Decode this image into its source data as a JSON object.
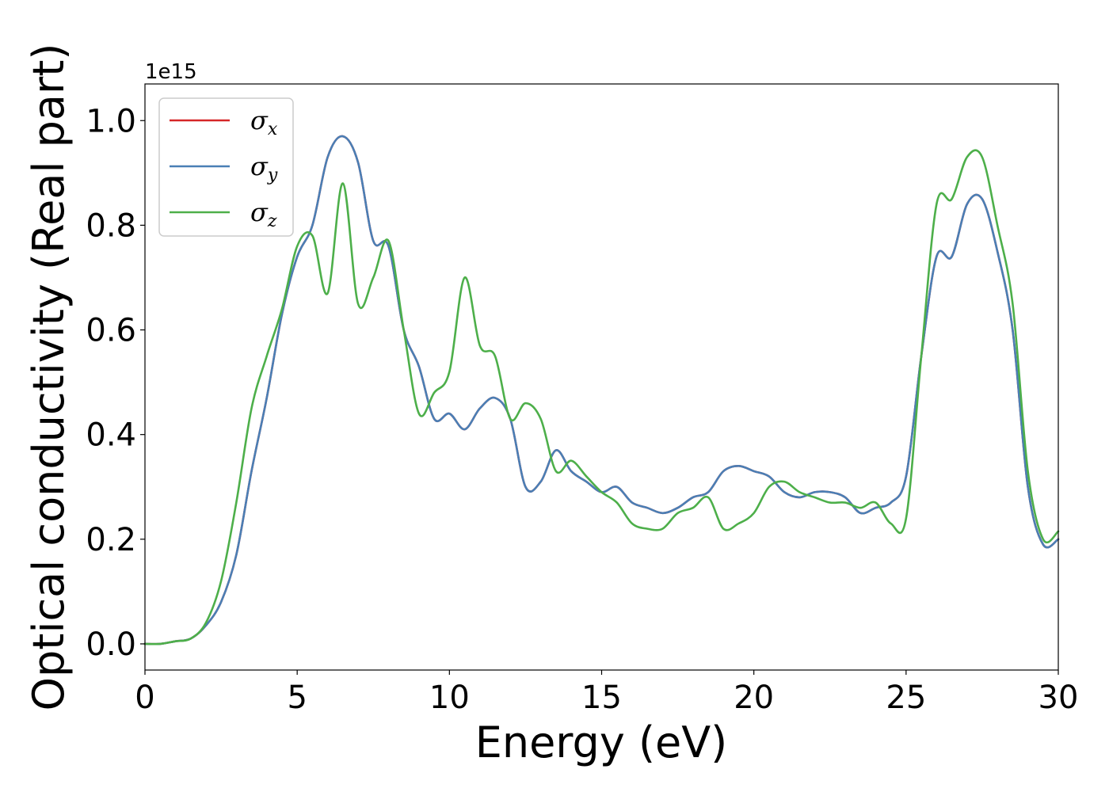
{
  "chart_data": {
    "type": "line",
    "title": "",
    "xlabel": "Energy (eV)",
    "ylabel": "Optical conductivity (Real part)",
    "y_offset_label": "1e15",
    "xlim": [
      0,
      30
    ],
    "ylim": [
      -0.05,
      1.07
    ],
    "xticks": [
      0,
      5,
      10,
      15,
      20,
      25,
      30
    ],
    "xtick_labels": [
      "0",
      "5",
      "10",
      "15",
      "20",
      "25",
      "30"
    ],
    "yticks": [
      0.0,
      0.2,
      0.4,
      0.6,
      0.8,
      1.0
    ],
    "ytick_labels": [
      "0.0",
      "0.2",
      "0.4",
      "0.6",
      "0.8",
      "1.0"
    ],
    "grid": false,
    "legend_position": "top-left",
    "x": [
      0,
      0.5,
      1.0,
      1.5,
      2.0,
      2.5,
      3.0,
      3.5,
      4.0,
      4.5,
      5.0,
      5.5,
      6.0,
      6.5,
      7.0,
      7.5,
      8.0,
      8.5,
      9.0,
      9.5,
      10.0,
      10.5,
      11.0,
      11.5,
      12.0,
      12.5,
      13.0,
      13.5,
      14.0,
      14.5,
      15.0,
      15.5,
      16.0,
      16.5,
      17.0,
      17.5,
      18.0,
      18.5,
      19.0,
      19.5,
      20.0,
      20.5,
      21.0,
      21.5,
      22.0,
      22.5,
      23.0,
      23.5,
      24.0,
      24.5,
      25.0,
      25.5,
      26.0,
      26.5,
      27.0,
      27.5,
      28.0,
      28.5,
      29.0,
      29.5,
      30.0
    ],
    "series": [
      {
        "name": "σx",
        "label_base": "σ",
        "label_sub": "x",
        "color": "#d62728",
        "values": [
          0.0,
          0.0,
          0.005,
          0.01,
          0.035,
          0.08,
          0.17,
          0.33,
          0.47,
          0.63,
          0.74,
          0.8,
          0.93,
          0.97,
          0.92,
          0.77,
          0.76,
          0.6,
          0.53,
          0.43,
          0.44,
          0.41,
          0.45,
          0.47,
          0.43,
          0.3,
          0.31,
          0.37,
          0.33,
          0.31,
          0.29,
          0.3,
          0.27,
          0.26,
          0.25,
          0.26,
          0.28,
          0.29,
          0.33,
          0.34,
          0.33,
          0.32,
          0.29,
          0.28,
          0.29,
          0.29,
          0.28,
          0.25,
          0.26,
          0.27,
          0.32,
          0.55,
          0.74,
          0.74,
          0.84,
          0.85,
          0.75,
          0.6,
          0.3,
          0.19,
          0.2
        ]
      },
      {
        "name": "σy",
        "label_base": "σ",
        "label_sub": "y",
        "color": "#4a7fb5",
        "values": [
          0.0,
          0.0,
          0.005,
          0.01,
          0.035,
          0.08,
          0.17,
          0.33,
          0.47,
          0.63,
          0.74,
          0.8,
          0.93,
          0.97,
          0.92,
          0.77,
          0.76,
          0.6,
          0.53,
          0.43,
          0.44,
          0.41,
          0.45,
          0.47,
          0.43,
          0.3,
          0.31,
          0.37,
          0.33,
          0.31,
          0.29,
          0.3,
          0.27,
          0.26,
          0.25,
          0.26,
          0.28,
          0.29,
          0.33,
          0.34,
          0.33,
          0.32,
          0.29,
          0.28,
          0.29,
          0.29,
          0.28,
          0.25,
          0.26,
          0.27,
          0.32,
          0.55,
          0.74,
          0.74,
          0.84,
          0.85,
          0.75,
          0.6,
          0.3,
          0.19,
          0.2
        ]
      },
      {
        "name": "σz",
        "label_base": "σ",
        "label_sub": "z",
        "color": "#4daf4a",
        "values": [
          0.0,
          0.0,
          0.005,
          0.01,
          0.04,
          0.12,
          0.27,
          0.45,
          0.55,
          0.64,
          0.76,
          0.78,
          0.67,
          0.88,
          0.65,
          0.7,
          0.77,
          0.6,
          0.44,
          0.48,
          0.52,
          0.7,
          0.57,
          0.55,
          0.43,
          0.46,
          0.43,
          0.33,
          0.35,
          0.32,
          0.29,
          0.27,
          0.23,
          0.22,
          0.22,
          0.25,
          0.26,
          0.28,
          0.22,
          0.23,
          0.25,
          0.3,
          0.31,
          0.29,
          0.28,
          0.27,
          0.27,
          0.26,
          0.27,
          0.23,
          0.24,
          0.55,
          0.84,
          0.85,
          0.93,
          0.93,
          0.8,
          0.65,
          0.33,
          0.2,
          0.215
        ]
      }
    ]
  }
}
